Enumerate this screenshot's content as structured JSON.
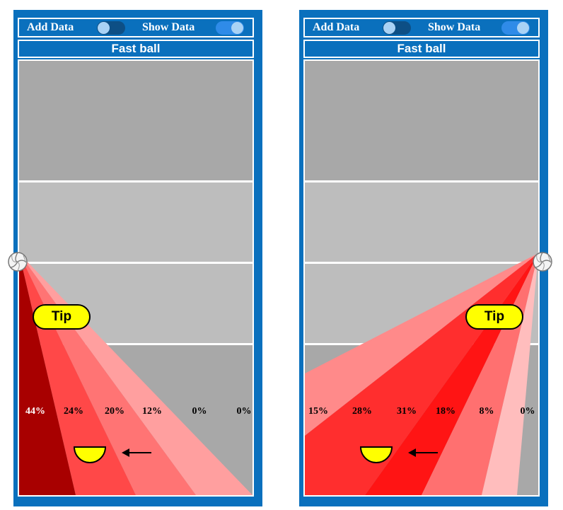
{
  "panels": [
    {
      "add_data_label": "Add Data",
      "add_data_on": false,
      "show_data_label": "Show Data",
      "show_data_on": true,
      "title": "Fast ball",
      "tip_label": "Tip",
      "ball_side": "left",
      "percentages": [
        "44%",
        "24%",
        "20%",
        "12%",
        "0%",
        "0%"
      ],
      "colors": {
        "accent": "#0a70bd",
        "tip": "#ffff00"
      },
      "icons": {
        "ball": "volleyball-icon",
        "player": "player-half-circle-icon",
        "arrow": "left-arrow-icon"
      }
    },
    {
      "add_data_label": "Add Data",
      "add_data_on": false,
      "show_data_label": "Show Data",
      "show_data_on": true,
      "title": "Fast ball",
      "tip_label": "Tip",
      "ball_side": "right",
      "percentages": [
        "15%",
        "28%",
        "31%",
        "18%",
        "8%",
        "0%"
      ],
      "colors": {
        "accent": "#0a70bd",
        "tip": "#ffff00"
      },
      "icons": {
        "ball": "volleyball-icon",
        "player": "player-half-circle-icon",
        "arrow": "left-arrow-icon"
      }
    }
  ]
}
